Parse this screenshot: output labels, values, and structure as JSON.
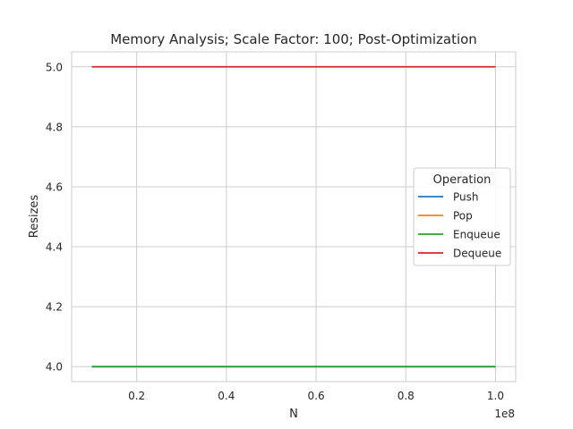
{
  "chart_data": {
    "type": "line",
    "title": "Memory Analysis; Scale Factor: 100; Post-Optimization",
    "xlabel": "N",
    "ylabel": "Resizes",
    "x_offset_label": "1e8",
    "xlim": [
      0.055,
      1.045
    ],
    "ylim": [
      3.95,
      5.05
    ],
    "x_ticks": [
      0.2,
      0.4,
      0.6,
      0.8,
      1.0
    ],
    "x_tick_labels": [
      "0.2",
      "0.4",
      "0.6",
      "0.8",
      "1.0"
    ],
    "y_ticks": [
      4.0,
      4.2,
      4.4,
      4.6,
      4.8,
      5.0
    ],
    "y_tick_labels": [
      "4.0",
      "4.2",
      "4.4",
      "4.6",
      "4.8",
      "5.0"
    ],
    "grid": true,
    "legend": {
      "title": "Operation",
      "placement": "center-right"
    },
    "series": [
      {
        "name": "Push",
        "color": "#1f77b4",
        "x": [
          0.1,
          1.0
        ],
        "values": [
          4.0,
          4.0
        ]
      },
      {
        "name": "Pop",
        "color": "#ff7f0e",
        "x": [
          0.1,
          1.0
        ],
        "values": [
          4.0,
          4.0
        ]
      },
      {
        "name": "Enqueue",
        "color": "#2ca02c",
        "x": [
          0.1,
          1.0
        ],
        "values": [
          4.0,
          4.0
        ]
      },
      {
        "name": "Dequeue",
        "color": "#d62728",
        "x": [
          0.1,
          1.0
        ],
        "values": [
          5.0,
          5.0
        ]
      }
    ]
  }
}
